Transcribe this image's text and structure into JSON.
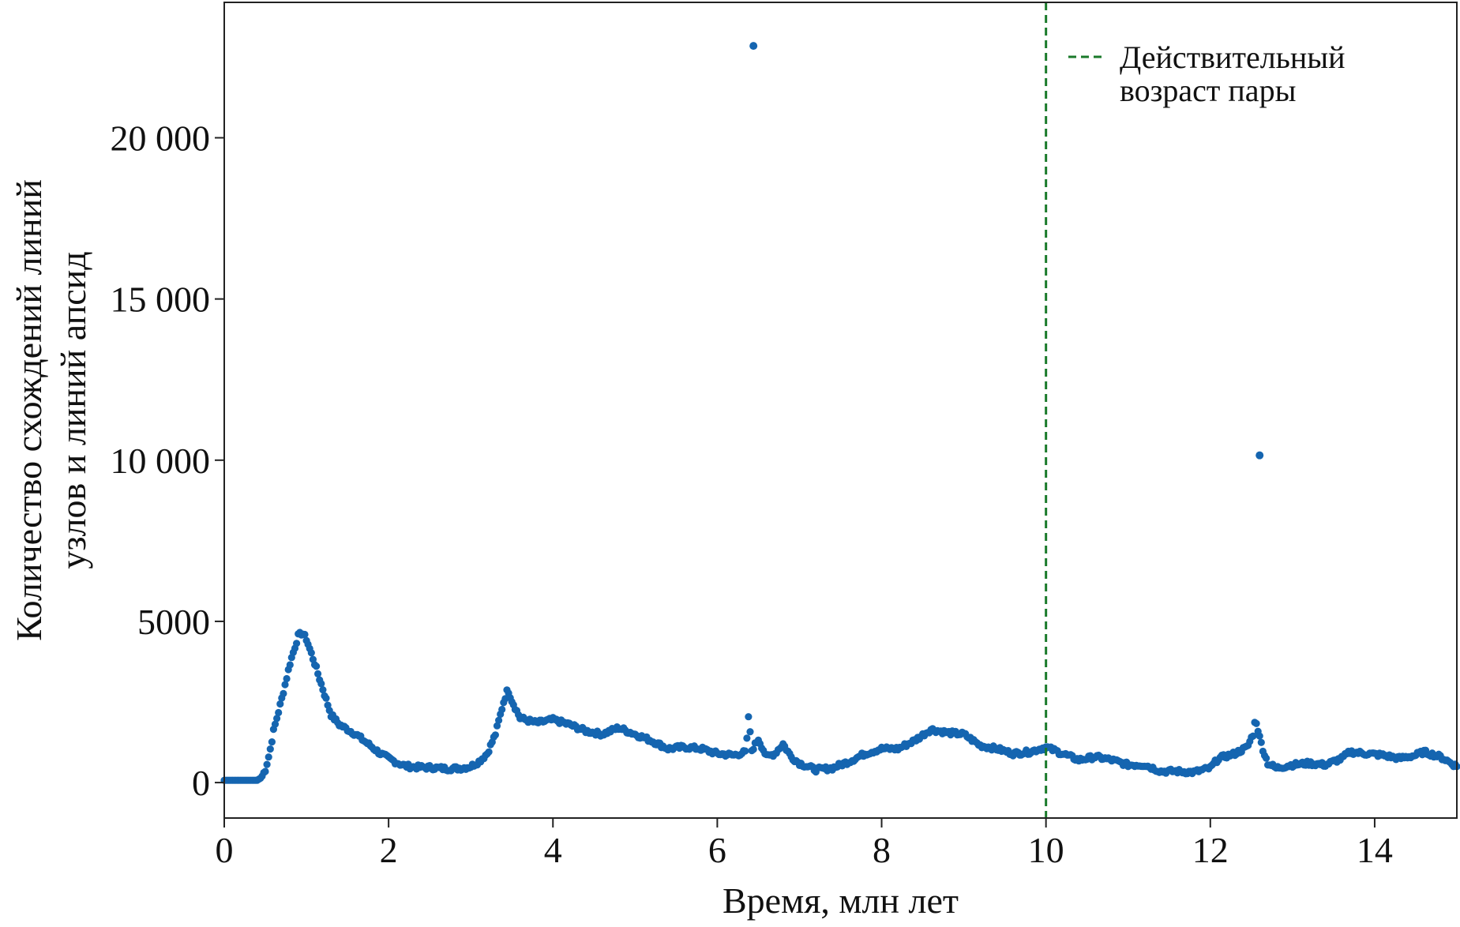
{
  "chart_data": {
    "type": "scatter",
    "title": "",
    "xlabel": "Время, млн лет",
    "ylabel_lines": [
      "Количество схождений линий",
      "узлов и линий апсид"
    ],
    "xlim": [
      0,
      15
    ],
    "ylim": [
      -1100,
      24200
    ],
    "xticks": [
      0,
      2,
      4,
      6,
      8,
      10,
      12,
      14
    ],
    "xtick_labels": [
      "0",
      "2",
      "4",
      "6",
      "8",
      "10",
      "12",
      "14"
    ],
    "yticks": [
      0,
      5000,
      10000,
      15000,
      20000
    ],
    "ytick_labels": [
      "0",
      "5000",
      "10 000",
      "15 000",
      "20 000"
    ],
    "grid": false,
    "series_color": "#1565b0",
    "reference_line": {
      "x": 10,
      "label_lines": [
        "Действительный",
        "возраст пары"
      ],
      "color": "#1a7a2a",
      "style": "dashed"
    },
    "legend_position": "top-right",
    "outliers": [
      [
        6.44,
        22850
      ],
      [
        12.6,
        10150
      ]
    ],
    "curve": [
      [
        0.0,
        70
      ],
      [
        0.4,
        70
      ],
      [
        0.45,
        150
      ],
      [
        0.5,
        400
      ],
      [
        0.55,
        900
      ],
      [
        0.6,
        1600
      ],
      [
        0.7,
        2600
      ],
      [
        0.8,
        3700
      ],
      [
        0.9,
        4550
      ],
      [
        0.95,
        4650
      ],
      [
        1.0,
        4450
      ],
      [
        1.1,
        3700
      ],
      [
        1.2,
        2900
      ],
      [
        1.3,
        2100
      ],
      [
        1.4,
        1800
      ],
      [
        1.5,
        1650
      ],
      [
        1.6,
        1500
      ],
      [
        1.7,
        1300
      ],
      [
        1.8,
        1100
      ],
      [
        1.9,
        900
      ],
      [
        2.0,
        750
      ],
      [
        2.1,
        620
      ],
      [
        2.2,
        520
      ],
      [
        2.3,
        480
      ],
      [
        2.5,
        470
      ],
      [
        2.7,
        430
      ],
      [
        2.9,
        450
      ],
      [
        3.0,
        500
      ],
      [
        3.1,
        650
      ],
      [
        3.2,
        900
      ],
      [
        3.3,
        1500
      ],
      [
        3.4,
        2500
      ],
      [
        3.45,
        2900
      ],
      [
        3.5,
        2550
      ],
      [
        3.6,
        2000
      ],
      [
        3.8,
        1850
      ],
      [
        4.0,
        1950
      ],
      [
        4.2,
        1800
      ],
      [
        4.4,
        1600
      ],
      [
        4.6,
        1500
      ],
      [
        4.8,
        1700
      ],
      [
        5.0,
        1500
      ],
      [
        5.2,
        1300
      ],
      [
        5.4,
        1050
      ],
      [
        5.6,
        1100
      ],
      [
        5.8,
        1050
      ],
      [
        6.0,
        900
      ],
      [
        6.2,
        850
      ],
      [
        6.35,
        950
      ],
      [
        6.38,
        2050
      ],
      [
        6.42,
        1000
      ],
      [
        6.5,
        1350
      ],
      [
        6.6,
        800
      ],
      [
        6.7,
        900
      ],
      [
        6.8,
        1200
      ],
      [
        6.9,
        800
      ],
      [
        7.0,
        600
      ],
      [
        7.2,
        400
      ],
      [
        7.4,
        450
      ],
      [
        7.6,
        650
      ],
      [
        7.8,
        900
      ],
      [
        8.0,
        1050
      ],
      [
        8.2,
        1050
      ],
      [
        8.4,
        1300
      ],
      [
        8.6,
        1650
      ],
      [
        8.8,
        1550
      ],
      [
        9.0,
        1500
      ],
      [
        9.2,
        1150
      ],
      [
        9.4,
        1050
      ],
      [
        9.6,
        900
      ],
      [
        9.8,
        950
      ],
      [
        10.0,
        1100
      ],
      [
        10.2,
        900
      ],
      [
        10.4,
        700
      ],
      [
        10.6,
        800
      ],
      [
        10.8,
        700
      ],
      [
        11.0,
        550
      ],
      [
        11.2,
        550
      ],
      [
        11.4,
        350
      ],
      [
        11.6,
        350
      ],
      [
        11.8,
        320
      ],
      [
        12.0,
        450
      ],
      [
        12.1,
        750
      ],
      [
        12.3,
        900
      ],
      [
        12.45,
        1100
      ],
      [
        12.52,
        1500
      ],
      [
        12.55,
        2000
      ],
      [
        12.6,
        1400
      ],
      [
        12.65,
        950
      ],
      [
        12.7,
        600
      ],
      [
        12.8,
        450
      ],
      [
        13.0,
        550
      ],
      [
        13.2,
        600
      ],
      [
        13.4,
        550
      ],
      [
        13.6,
        750
      ],
      [
        13.7,
        950
      ],
      [
        13.9,
        900
      ],
      [
        14.1,
        850
      ],
      [
        14.3,
        750
      ],
      [
        14.5,
        850
      ],
      [
        14.6,
        950
      ],
      [
        14.8,
        800
      ],
      [
        15.0,
        500
      ]
    ]
  }
}
